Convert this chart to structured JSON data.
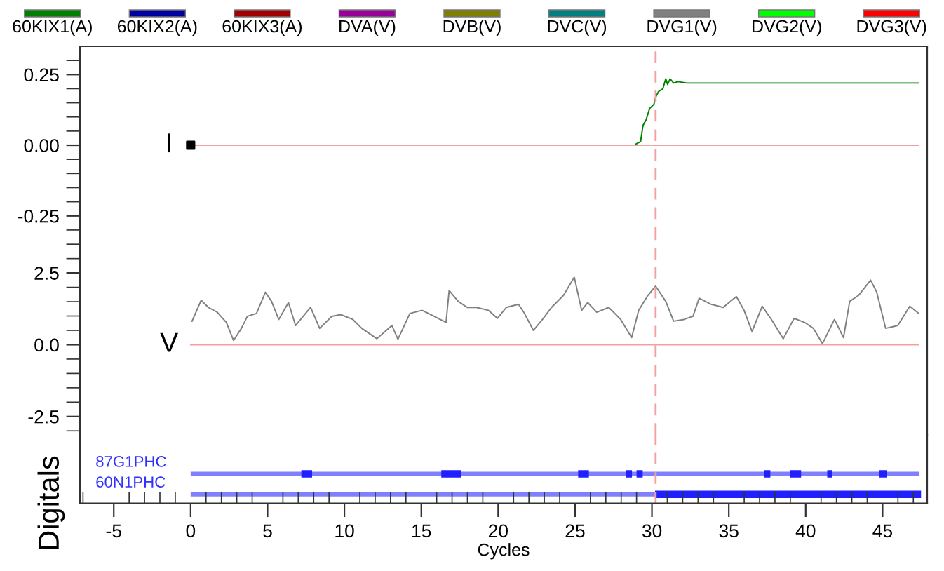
{
  "chart_data": [
    {
      "type": "line",
      "legend": "top",
      "xlim": [
        -7.2,
        47.9
      ],
      "ylim": [
        -0.33,
        0.35
      ],
      "tick_labels": "y",
      "yticks": [
        {
          "value": -0.3,
          "label": null
        },
        {
          "value": -0.25,
          "label": "-0.25"
        },
        {
          "value": -0.2,
          "label": null
        },
        {
          "value": -0.15,
          "label": null
        },
        {
          "value": -0.1,
          "label": null
        },
        {
          "value": -0.05,
          "label": null
        },
        {
          "value": 0,
          "label": "0.00"
        },
        {
          "value": 0.05,
          "label": null
        },
        {
          "value": 0.1,
          "label": null
        },
        {
          "value": 0.15,
          "label": null
        },
        {
          "value": 0.2,
          "label": null
        },
        {
          "value": 0.25,
          "label": "0.25"
        },
        {
          "value": 0.3,
          "label": null
        }
      ],
      "ref_lines": [
        {
          "axis": "x",
          "value": 30.24,
          "color": "#f4a0a0",
          "line_style": "dashed"
        }
      ],
      "annotations": [
        "I"
      ],
      "series": [
        {
          "name": "60KIX1(A)",
          "color": "#008000",
          "x": [
            28.95,
            29.26,
            29.42,
            29.62,
            29.85,
            30.13,
            30.24,
            30.43,
            30.71,
            30.9,
            31.02,
            31.18,
            31.41,
            31.69,
            32.28,
            47.35
          ],
          "values": [
            0.004,
            0.013,
            0.07,
            0.09,
            0.13,
            0.145,
            0.17,
            0.19,
            0.2,
            0.235,
            0.215,
            0.235,
            0.22,
            0.225,
            0.22,
            0.22
          ]
        },
        {
          "name": "60KIX2(A)",
          "color": "#0000a0"
        },
        {
          "name": "60KIX3(A)",
          "color": "#a00000"
        },
        {
          "color": "#f4a0a0",
          "x": [
            0,
            47.35
          ],
          "values": [
            0,
            0
          ]
        },
        {
          "type": "scatter",
          "marker": "square",
          "color": "#000000",
          "x": [
            0
          ],
          "values": [
            0
          ]
        }
      ]
    },
    {
      "type": "line",
      "xlim": [
        -7.2,
        47.9
      ],
      "ylim": [
        -3.14,
        3.7
      ],
      "tick_labels": "y",
      "yticks": [
        {
          "value": -3,
          "label": null
        },
        {
          "value": -2.5,
          "label": "-2.5"
        },
        {
          "value": -2,
          "label": null
        },
        {
          "value": -1.5,
          "label": null
        },
        {
          "value": -1,
          "label": null
        },
        {
          "value": -0.5,
          "label": null
        },
        {
          "value": 0,
          "label": "0.0"
        },
        {
          "value": 0.5,
          "label": null
        },
        {
          "value": 1,
          "label": null
        },
        {
          "value": 1.5,
          "label": null
        },
        {
          "value": 2,
          "label": null
        },
        {
          "value": 2.5,
          "label": "2.5"
        },
        {
          "value": 3,
          "label": null
        },
        {
          "value": 3.5,
          "label": null
        }
      ],
      "ref_lines": [
        {
          "axis": "x",
          "value": 30.24,
          "color": "#f4a0a0",
          "line_style": "dashed"
        }
      ],
      "annotations": [
        "V"
      ],
      "series": [
        {
          "name": "DVA(V)",
          "color": "#990099"
        },
        {
          "name": "DVB(V)",
          "color": "#808000"
        },
        {
          "name": "DVC(V)",
          "color": "#008080"
        },
        {
          "name": "DVG1(V)",
          "color": "#808080",
          "x": [
            0.09,
            0.68,
            1.15,
            1.73,
            2.32,
            2.79,
            3.3,
            3.69,
            4.28,
            4.86,
            5.26,
            5.73,
            6.36,
            6.82,
            7.8,
            8.39,
            9.18,
            9.76,
            10.55,
            11.13,
            12.11,
            13.09,
            13.48,
            14.26,
            15.05,
            15.83,
            16.61,
            16.81,
            17.4,
            17.99,
            18.58,
            19.36,
            19.95,
            20.53,
            21.32,
            21.71,
            22.29,
            22.88,
            23.47,
            24.25,
            24.95,
            25.43,
            25.82,
            26.41,
            27.19,
            27.97,
            28.68,
            29.14,
            29.74,
            30.24,
            30.9,
            31.41,
            32.08,
            32.67,
            33.07,
            33.84,
            34.63,
            35.49,
            35.99,
            36.51,
            37.17,
            37.77,
            38.54,
            39.25,
            39.92,
            40.5,
            41.09,
            41.87,
            42.46,
            42.86,
            43.44,
            44.22,
            44.62,
            45.2,
            45.99,
            46.77,
            47.35
          ],
          "values": [
            0.82,
            1.55,
            1.3,
            1.13,
            0.78,
            0.15,
            0.57,
            0.99,
            1.09,
            1.83,
            1.51,
            0.88,
            1.47,
            0.67,
            1.3,
            0.57,
            0.99,
            1.05,
            0.88,
            0.57,
            0.21,
            0.67,
            0.19,
            1.09,
            1.2,
            0.99,
            0.78,
            1.89,
            1.51,
            1.3,
            1.3,
            1.2,
            0.92,
            1.3,
            1.41,
            1.09,
            0.5,
            0.88,
            1.3,
            1.72,
            2.35,
            1.2,
            1.47,
            1.13,
            1.3,
            0.88,
            0.25,
            1.2,
            1.72,
            2.04,
            1.51,
            0.82,
            0.88,
            0.99,
            1.62,
            1.41,
            1.3,
            1.68,
            1.2,
            0.46,
            1.34,
            0.88,
            0.21,
            0.92,
            0.78,
            0.57,
            0.04,
            0.88,
            0.25,
            1.51,
            1.72,
            2.25,
            1.83,
            0.57,
            0.67,
            1.34,
            1.09
          ]
        },
        {
          "name": "DVG2(V)",
          "color": "#00ff00"
        },
        {
          "name": "DVG3(V)",
          "color": "#ff0000"
        },
        {
          "color": "#f4a0a0",
          "x": [
            0,
            47.35
          ],
          "values": [
            0,
            0
          ]
        }
      ]
    },
    {
      "type": "bar",
      "orientation": "horizontal",
      "xlim": [
        -7.2,
        47.9
      ],
      "xlabel": "Cycles",
      "ylabel": "Digitals",
      "categories": [
        "87G1PHC",
        "60N1PHC"
      ],
      "xticks": [
        {
          "value": -7,
          "label": null
        },
        {
          "value": -5,
          "label": "-5"
        },
        {
          "value": -4,
          "label": null
        },
        {
          "value": -3,
          "label": null
        },
        {
          "value": -2,
          "label": null
        },
        {
          "value": -1,
          "label": null
        },
        {
          "value": 0,
          "label": "0"
        },
        {
          "value": 1,
          "label": null
        },
        {
          "value": 2,
          "label": null
        },
        {
          "value": 3,
          "label": null
        },
        {
          "value": 4,
          "label": null
        },
        {
          "value": 5,
          "label": "5"
        },
        {
          "value": 6,
          "label": null
        },
        {
          "value": 7,
          "label": null
        },
        {
          "value": 8,
          "label": null
        },
        {
          "value": 9,
          "label": null
        },
        {
          "value": 10,
          "label": "10"
        },
        {
          "value": 11,
          "label": null
        },
        {
          "value": 12,
          "label": null
        },
        {
          "value": 13,
          "label": null
        },
        {
          "value": 14,
          "label": null
        },
        {
          "value": 15,
          "label": "15"
        },
        {
          "value": 16,
          "label": null
        },
        {
          "value": 17,
          "label": null
        },
        {
          "value": 18,
          "label": null
        },
        {
          "value": 19,
          "label": null
        },
        {
          "value": 20,
          "label": "20"
        },
        {
          "value": 21,
          "label": null
        },
        {
          "value": 22,
          "label": null
        },
        {
          "value": 23,
          "label": null
        },
        {
          "value": 24,
          "label": null
        },
        {
          "value": 25,
          "label": "25"
        },
        {
          "value": 26,
          "label": null
        },
        {
          "value": 27,
          "label": null
        },
        {
          "value": 28,
          "label": null
        },
        {
          "value": 29,
          "label": null
        },
        {
          "value": 30,
          "label": "30"
        },
        {
          "value": 31,
          "label": null
        },
        {
          "value": 32,
          "label": null
        },
        {
          "value": 33,
          "label": null
        },
        {
          "value": 34,
          "label": null
        },
        {
          "value": 35,
          "label": "35"
        },
        {
          "value": 36,
          "label": null
        },
        {
          "value": 37,
          "label": null
        },
        {
          "value": 38,
          "label": null
        },
        {
          "value": 39,
          "label": null
        },
        {
          "value": 40,
          "label": "40"
        },
        {
          "value": 41,
          "label": null
        },
        {
          "value": 42,
          "label": null
        },
        {
          "value": 43,
          "label": null
        },
        {
          "value": 44,
          "label": null
        },
        {
          "value": 45,
          "label": "45"
        },
        {
          "value": 46,
          "label": null
        },
        {
          "value": 47,
          "label": null
        }
      ],
      "ref_lines": [
        {
          "axis": "x",
          "value": 30.24,
          "color": "#f4a0a0",
          "line_style": "dashed"
        }
      ],
      "series": [
        {
          "color": "#8080ff",
          "base": [
            0,
            0
          ],
          "values": [
            47.4,
            30.2
          ]
        },
        {
          "color": "#2020ff",
          "base": [
            7.2,
            30.2
          ],
          "values": [
            0.7,
            17.3
          ]
        },
        {
          "color": "#2020ff",
          "base": [
            16.3,
            null
          ],
          "values": [
            1.3,
            null
          ]
        },
        {
          "color": "#2020ff",
          "base": [
            25.2,
            null
          ],
          "values": [
            0.7,
            null
          ]
        },
        {
          "color": "#2020ff",
          "base": [
            28.3,
            null
          ],
          "values": [
            0.4,
            null
          ]
        },
        {
          "color": "#2020ff",
          "base": [
            29.0,
            null
          ],
          "values": [
            0.4,
            null
          ]
        },
        {
          "color": "#2020ff",
          "base": [
            37.3,
            null
          ],
          "values": [
            0.4,
            null
          ]
        },
        {
          "color": "#2020ff",
          "base": [
            39.0,
            null
          ],
          "values": [
            0.7,
            null
          ]
        },
        {
          "color": "#2020ff",
          "base": [
            41.4,
            null
          ],
          "values": [
            0.3,
            null
          ]
        },
        {
          "color": "#2020ff",
          "base": [
            44.8,
            null
          ],
          "values": [
            0.5,
            null
          ]
        }
      ]
    }
  ]
}
